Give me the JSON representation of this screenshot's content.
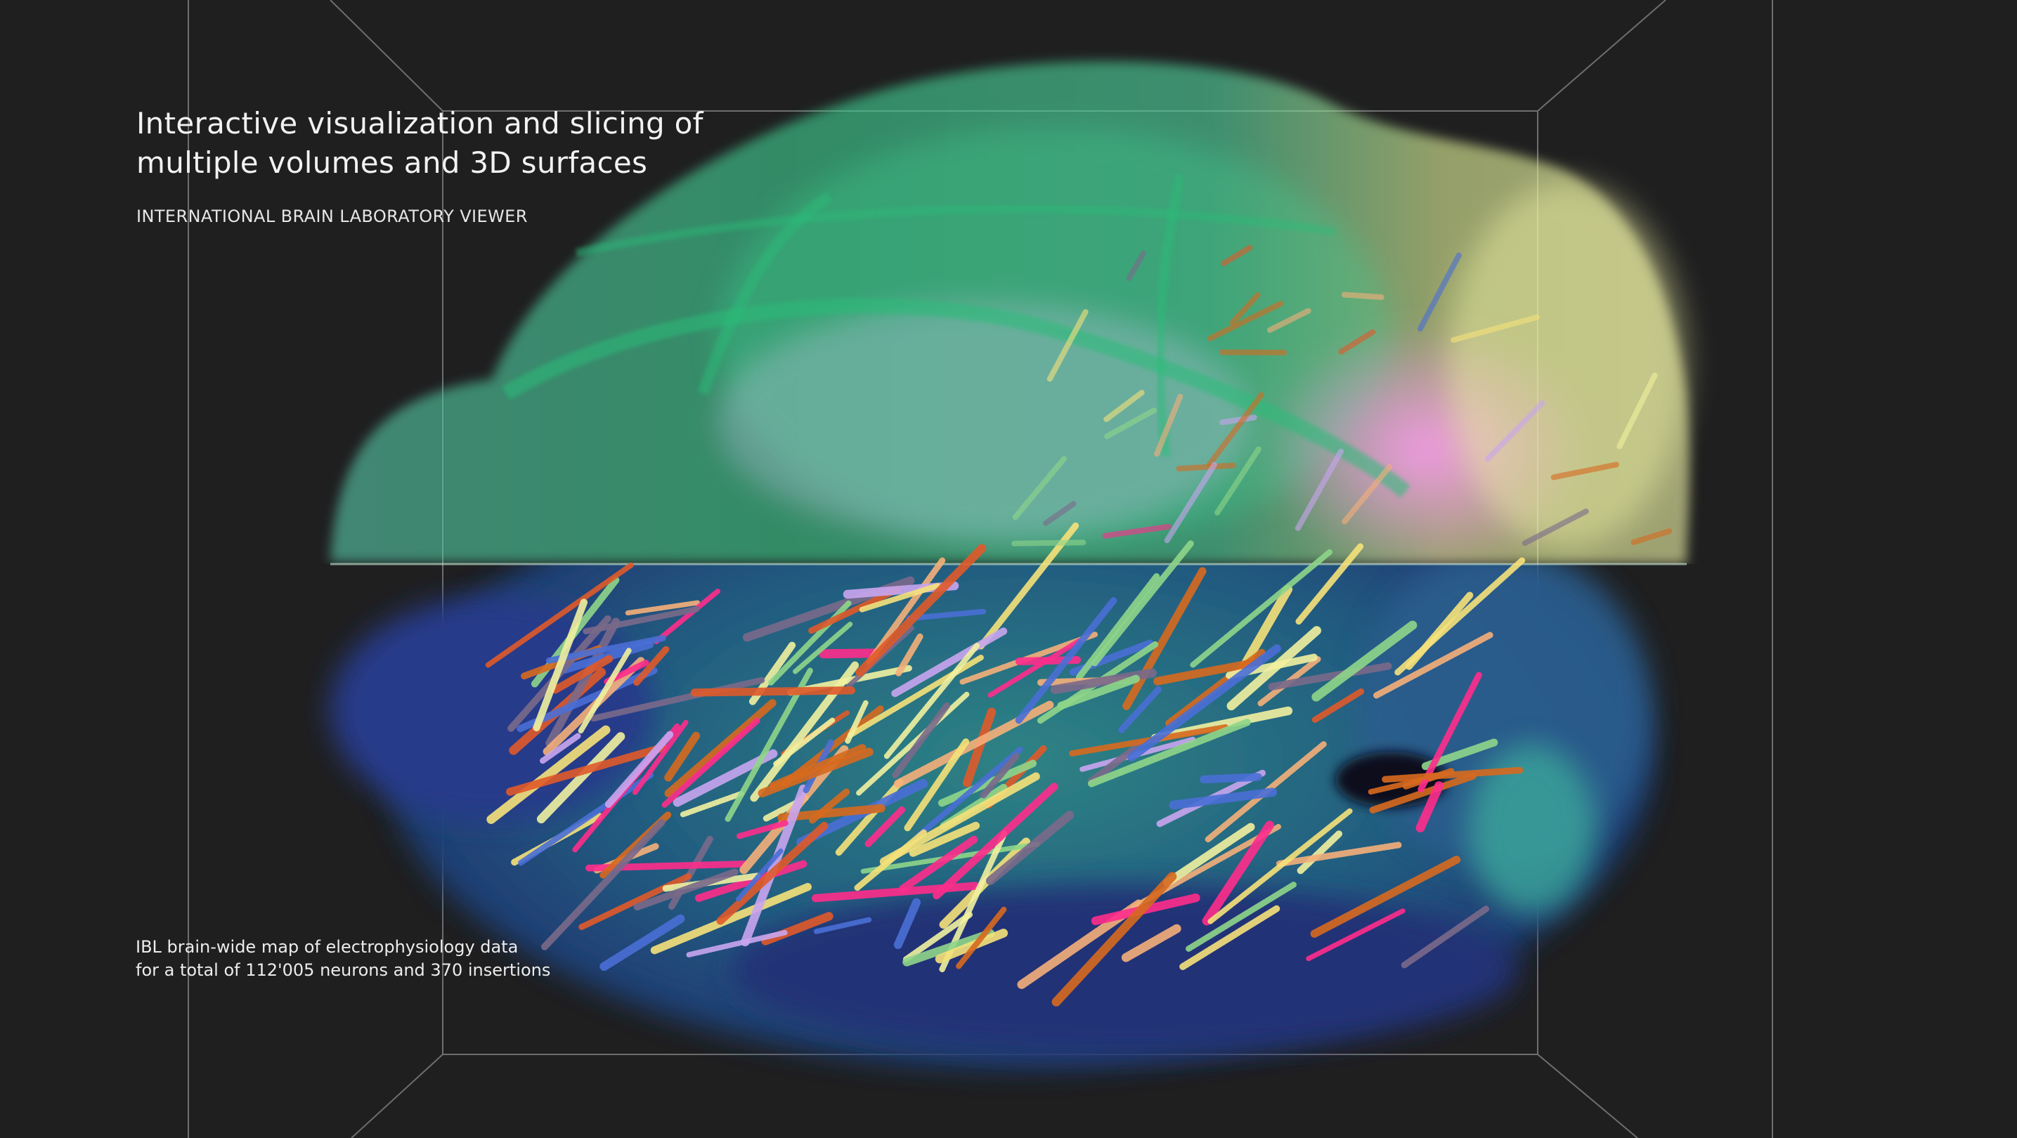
{
  "viewer": {
    "title_line_1": "Interactive visualization and slicing of",
    "title_line_2": "multiple volumes and 3D surfaces",
    "subtitle": "INTERNATIONAL BRAIN LABORATORY VIEWER",
    "caption_line_1": "IBL brain-wide map of electrophysiology data",
    "caption_line_2": "for a total of 112'005 neurons and 370 insertions"
  },
  "scene": {
    "background_color": "#1f1f20",
    "bounding_box_color": "#8a8a8a",
    "upper_volume_colors": [
      "#35c98a",
      "#4fd6a8",
      "#e9f08a",
      "#f39ae6"
    ],
    "lower_volume_colors": [
      "#1d2f7a",
      "#1f5c86",
      "#2f8a8a",
      "#55b3a0"
    ],
    "probe_track_colors": [
      "#ff2d8c",
      "#f6e27a",
      "#c9a6f0",
      "#f5b07a",
      "#d76a1f",
      "#8fd68a",
      "#4a6fd6",
      "#7a6a8a",
      "#f1f1a0",
      "#e05a2a"
    ]
  }
}
